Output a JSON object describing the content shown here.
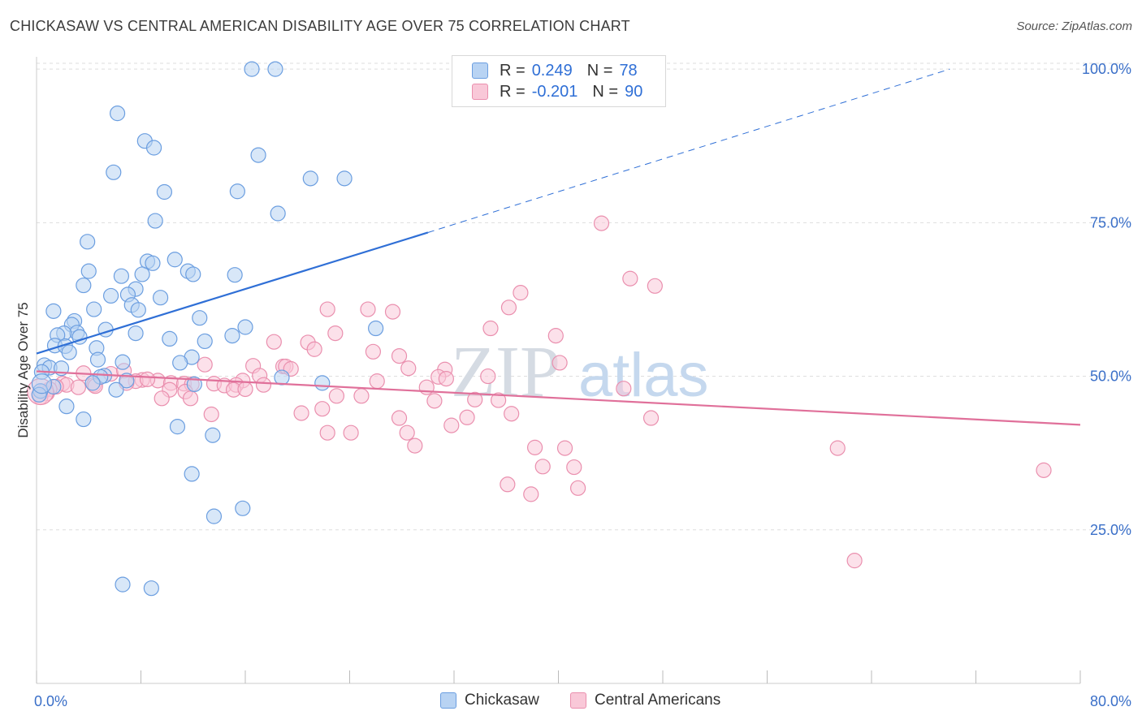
{
  "title": "CHICKASAW VS CENTRAL AMERICAN DISABILITY AGE OVER 75 CORRELATION CHART",
  "source": "Source: ZipAtlas.com",
  "watermark": {
    "zip": "ZIP",
    "atlas": "atlas"
  },
  "colors": {
    "blue_fill": "#b8d3f3",
    "blue_stroke": "#6b9ee0",
    "blue_line": "#2f6fd6",
    "pink_fill": "#f9c8d8",
    "pink_stroke": "#ea8fae",
    "pink_line": "#e0709a",
    "axis_label": "#3a6fc8",
    "grid": "#dddddd"
  },
  "legend_top": {
    "rows": [
      {
        "r_label": "R =",
        "r_value": "0.249",
        "n_label": "N =",
        "n_value": "78"
      },
      {
        "r_label": "R =",
        "r_value": "-0.201",
        "n_label": "N =",
        "n_value": "90"
      }
    ]
  },
  "bottom_legend": [
    "Chickasaw",
    "Central Americans"
  ],
  "chart_data": {
    "type": "scatter",
    "title": "CHICKASAW VS CENTRAL AMERICAN DISABILITY AGE OVER 75 CORRELATION CHART",
    "xlabel": "",
    "ylabel": "Disability Age Over 75",
    "xlim": [
      0,
      80
    ],
    "ylim": [
      0,
      102
    ],
    "x_tick_labels": [
      "0.0%",
      "80.0%"
    ],
    "y_ticks": [
      25,
      50,
      75,
      100
    ],
    "y_tick_labels": [
      "25.0%",
      "50.0%",
      "75.0%",
      "100.0%"
    ],
    "grid": "horizontal dashed",
    "legend_position": "top-center",
    "series": [
      {
        "name": "Chickasaw",
        "color": "#6b9ee0",
        "R": 0.249,
        "N": 78,
        "trend": {
          "x0": 0,
          "y0": 53.7,
          "x1": 30,
          "y1": 73.4,
          "x_dash_end": 70,
          "y_dash_end": 100
        },
        "points": [
          [
            16.5,
            100
          ],
          [
            18.3,
            100
          ],
          [
            6.2,
            92.8
          ],
          [
            8.3,
            88.3
          ],
          [
            9.0,
            87.2
          ],
          [
            17.0,
            86.0
          ],
          [
            5.9,
            83.2
          ],
          [
            21.0,
            82.2
          ],
          [
            23.6,
            82.2
          ],
          [
            9.8,
            80.0
          ],
          [
            15.4,
            80.1
          ],
          [
            18.5,
            76.5
          ],
          [
            9.1,
            75.3
          ],
          [
            3.9,
            71.9
          ],
          [
            10.6,
            69.0
          ],
          [
            8.5,
            68.7
          ],
          [
            8.9,
            68.4
          ],
          [
            4.0,
            67.1
          ],
          [
            11.6,
            67.1
          ],
          [
            12.0,
            66.6
          ],
          [
            6.5,
            66.3
          ],
          [
            15.2,
            66.5
          ],
          [
            8.1,
            66.6
          ],
          [
            3.6,
            64.8
          ],
          [
            7.6,
            64.2
          ],
          [
            5.7,
            63.1
          ],
          [
            7.0,
            63.3
          ],
          [
            9.5,
            62.8
          ],
          [
            7.3,
            61.6
          ],
          [
            7.8,
            60.8
          ],
          [
            4.4,
            60.9
          ],
          [
            1.3,
            60.6
          ],
          [
            12.5,
            59.5
          ],
          [
            2.9,
            59.0
          ],
          [
            2.7,
            58.4
          ],
          [
            16.0,
            58.0
          ],
          [
            26.0,
            57.8
          ],
          [
            5.3,
            57.6
          ],
          [
            3.1,
            57.1
          ],
          [
            7.6,
            57.0
          ],
          [
            2.1,
            57.0
          ],
          [
            1.6,
            56.7
          ],
          [
            3.3,
            56.4
          ],
          [
            15.0,
            56.6
          ],
          [
            10.2,
            56.1
          ],
          [
            12.9,
            55.7
          ],
          [
            1.4,
            55.0
          ],
          [
            2.2,
            54.9
          ],
          [
            4.6,
            54.6
          ],
          [
            2.5,
            53.9
          ],
          [
            11.9,
            53.1
          ],
          [
            4.7,
            52.7
          ],
          [
            6.6,
            52.3
          ],
          [
            11.0,
            52.2
          ],
          [
            0.6,
            51.8
          ],
          [
            1.0,
            51.4
          ],
          [
            1.9,
            51.3
          ],
          [
            0.4,
            50.7
          ],
          [
            5.2,
            50.1
          ],
          [
            4.9,
            49.9
          ],
          [
            18.8,
            49.8
          ],
          [
            6.9,
            49.3
          ],
          [
            4.3,
            48.9
          ],
          [
            12.1,
            48.7
          ],
          [
            21.9,
            48.9
          ],
          [
            1.3,
            48.3
          ],
          [
            6.1,
            47.8
          ],
          [
            0.3,
            47.6
          ],
          [
            2.3,
            45.1
          ],
          [
            3.6,
            43.0
          ],
          [
            10.8,
            41.8
          ],
          [
            13.5,
            40.4
          ],
          [
            11.9,
            34.1
          ],
          [
            13.6,
            27.2
          ],
          [
            15.8,
            28.5
          ],
          [
            6.6,
            16.1
          ],
          [
            8.8,
            15.5
          ],
          [
            0.2,
            47.0
          ]
        ]
      },
      {
        "name": "Central Americans",
        "color": "#ea8fae",
        "R": -0.201,
        "N": 90,
        "trend": {
          "x0": 0,
          "y0": 50.8,
          "x1": 80,
          "y1": 42.1
        },
        "points": [
          [
            43.3,
            74.9
          ],
          [
            45.5,
            65.9
          ],
          [
            47.4,
            64.7
          ],
          [
            37.1,
            63.6
          ],
          [
            22.3,
            60.9
          ],
          [
            25.4,
            60.9
          ],
          [
            36.2,
            61.2
          ],
          [
            27.3,
            60.5
          ],
          [
            34.8,
            57.8
          ],
          [
            22.9,
            57.0
          ],
          [
            39.8,
            56.6
          ],
          [
            18.2,
            55.6
          ],
          [
            20.8,
            55.5
          ],
          [
            21.3,
            54.4
          ],
          [
            25.8,
            54.0
          ],
          [
            27.8,
            53.3
          ],
          [
            40.1,
            52.2
          ],
          [
            12.9,
            51.9
          ],
          [
            16.6,
            51.7
          ],
          [
            18.9,
            51.6
          ],
          [
            19.1,
            51.6
          ],
          [
            19.5,
            51.2
          ],
          [
            28.5,
            51.3
          ],
          [
            31.3,
            51.1
          ],
          [
            34.6,
            50.0
          ],
          [
            30.8,
            49.9
          ],
          [
            31.4,
            49.6
          ],
          [
            17.1,
            50.1
          ],
          [
            5.7,
            50.4
          ],
          [
            6.7,
            50.9
          ],
          [
            3.6,
            50.5
          ],
          [
            9.3,
            49.3
          ],
          [
            15.8,
            49.3
          ],
          [
            8.1,
            49.4
          ],
          [
            7.6,
            49.2
          ],
          [
            10.3,
            48.9
          ],
          [
            11.3,
            48.8
          ],
          [
            11.9,
            48.7
          ],
          [
            6.9,
            48.9
          ],
          [
            4.4,
            48.6
          ],
          [
            4.5,
            48.4
          ],
          [
            2.0,
            48.8
          ],
          [
            2.3,
            48.6
          ],
          [
            3.2,
            48.2
          ],
          [
            1.5,
            48.3
          ],
          [
            1.0,
            47.9
          ],
          [
            13.6,
            48.8
          ],
          [
            14.4,
            48.5
          ],
          [
            15.3,
            48.6
          ],
          [
            17.4,
            48.6
          ],
          [
            26.1,
            49.2
          ],
          [
            29.9,
            48.2
          ],
          [
            10.2,
            47.8
          ],
          [
            11.4,
            47.5
          ],
          [
            15.1,
            47.8
          ],
          [
            16.0,
            47.9
          ],
          [
            9.6,
            46.4
          ],
          [
            11.8,
            46.4
          ],
          [
            23.0,
            46.8
          ],
          [
            24.9,
            46.8
          ],
          [
            33.6,
            46.2
          ],
          [
            35.4,
            46.1
          ],
          [
            0.5,
            47.5
          ],
          [
            0.8,
            47.2
          ],
          [
            0.3,
            46.6
          ],
          [
            13.4,
            43.8
          ],
          [
            20.3,
            44.0
          ],
          [
            21.9,
            44.7
          ],
          [
            27.8,
            43.2
          ],
          [
            31.8,
            42.0
          ],
          [
            33.0,
            43.3
          ],
          [
            36.4,
            43.9
          ],
          [
            47.1,
            43.2
          ],
          [
            22.3,
            40.8
          ],
          [
            24.1,
            40.8
          ],
          [
            28.4,
            40.8
          ],
          [
            29.0,
            38.7
          ],
          [
            38.2,
            38.4
          ],
          [
            40.5,
            38.3
          ],
          [
            61.4,
            38.3
          ],
          [
            38.8,
            35.3
          ],
          [
            41.2,
            35.2
          ],
          [
            77.2,
            34.7
          ],
          [
            36.1,
            32.4
          ],
          [
            37.9,
            30.8
          ],
          [
            41.5,
            31.8
          ],
          [
            62.7,
            20.0
          ],
          [
            45.0,
            48.0
          ],
          [
            30.5,
            46.0
          ],
          [
            8.5,
            49.5
          ]
        ]
      }
    ]
  }
}
